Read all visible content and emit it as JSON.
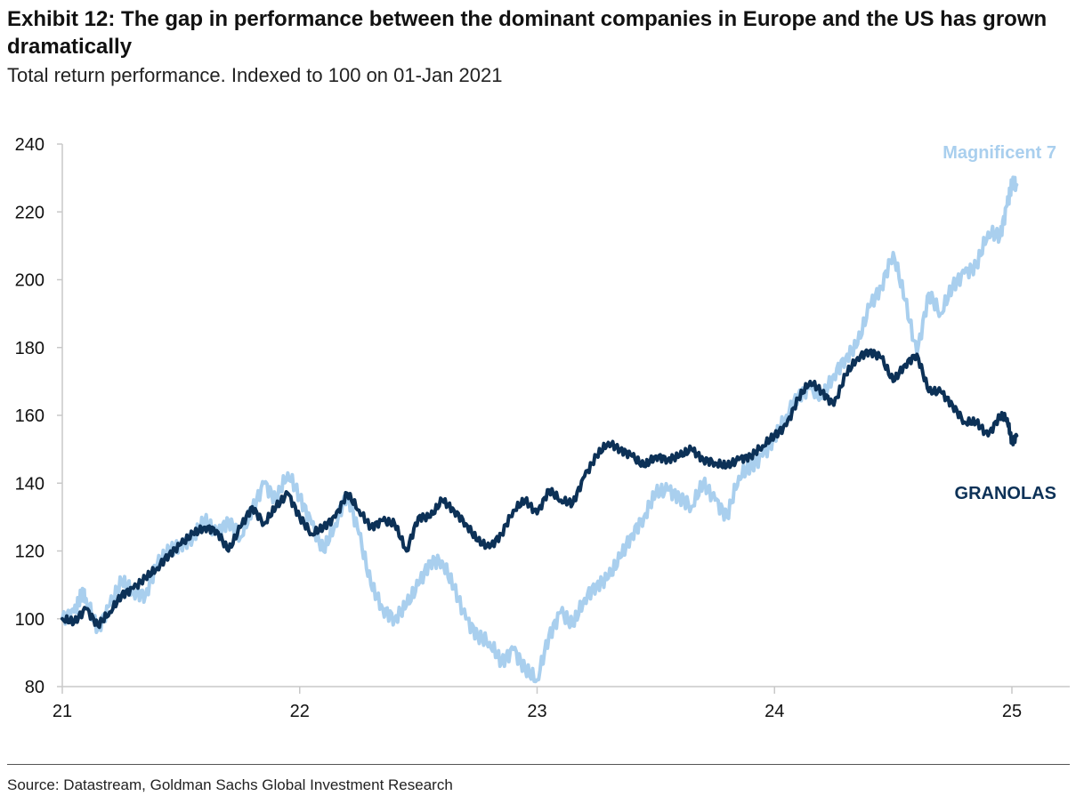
{
  "header": {
    "title": "Exhibit 12: The gap in performance between the dominant companies in Europe and the US has grown dramatically",
    "subtitle": "Total return performance. Indexed to 100 on 01-Jan 2021"
  },
  "footer": {
    "source": "Source: Datastream, Goldman Sachs Global Investment Research"
  },
  "colors": {
    "magnificent7": "#a9cfee",
    "granolas": "#0c3157",
    "axis": "#c8c8c8"
  },
  "chart_data": {
    "type": "line",
    "title": "Total return performance. Indexed to 100 on 01-Jan 2021",
    "xlabel": "",
    "ylabel": "",
    "xlim": [
      21.0,
      25.25
    ],
    "ylim": [
      80,
      240
    ],
    "x_ticks": [
      21,
      22,
      23,
      24,
      25
    ],
    "x_tick_labels": [
      "21",
      "22",
      "23",
      "24",
      "25"
    ],
    "y_ticks": [
      80,
      100,
      120,
      140,
      160,
      180,
      200,
      220,
      240
    ],
    "y_tick_labels": [
      "80",
      "100",
      "120",
      "140",
      "160",
      "180",
      "200",
      "220",
      "240"
    ],
    "grid": false,
    "series": [
      {
        "name": "Magnificent 7",
        "label": "Magnificent 7",
        "x": [
          21.0,
          21.05,
          21.08,
          21.1,
          21.15,
          21.2,
          21.25,
          21.3,
          21.35,
          21.4,
          21.45,
          21.5,
          21.55,
          21.6,
          21.65,
          21.7,
          21.75,
          21.8,
          21.85,
          21.9,
          21.95,
          22.0,
          22.05,
          22.1,
          22.15,
          22.2,
          22.25,
          22.3,
          22.35,
          22.4,
          22.45,
          22.5,
          22.55,
          22.6,
          22.65,
          22.7,
          22.75,
          22.8,
          22.85,
          22.9,
          22.95,
          23.0,
          23.05,
          23.1,
          23.15,
          23.2,
          23.25,
          23.3,
          23.35,
          23.4,
          23.45,
          23.5,
          23.55,
          23.6,
          23.65,
          23.7,
          23.75,
          23.8,
          23.85,
          23.9,
          23.95,
          24.0,
          24.05,
          24.1,
          24.15,
          24.2,
          24.25,
          24.3,
          24.35,
          24.4,
          24.45,
          24.5,
          24.55,
          24.6,
          24.65,
          24.7,
          24.75,
          24.8,
          24.85,
          24.9,
          24.95,
          24.98,
          25.0,
          25.02
        ],
        "values": [
          100,
          102,
          107,
          106,
          97,
          104,
          111,
          108,
          107,
          116,
          120,
          122,
          124,
          129,
          125,
          129,
          124,
          132,
          140,
          135,
          143,
          136,
          128,
          120,
          128,
          137,
          125,
          110,
          103,
          100,
          104,
          110,
          117,
          117,
          109,
          100,
          95,
          93,
          87,
          91,
          85,
          82,
          95,
          102,
          98,
          106,
          110,
          112,
          118,
          125,
          130,
          137,
          138,
          136,
          133,
          140,
          135,
          130,
          142,
          145,
          148,
          153,
          160,
          166,
          168,
          165,
          172,
          177,
          181,
          192,
          198,
          208,
          194,
          178,
          196,
          190,
          198,
          202,
          204,
          214,
          213,
          222,
          228,
          228
        ]
      },
      {
        "name": "GRANOLAS",
        "label": "GRANOLAS",
        "x": [
          21.0,
          21.05,
          21.1,
          21.15,
          21.2,
          21.25,
          21.3,
          21.35,
          21.4,
          21.45,
          21.5,
          21.55,
          21.6,
          21.65,
          21.7,
          21.75,
          21.8,
          21.85,
          21.9,
          21.95,
          22.0,
          22.05,
          22.1,
          22.15,
          22.2,
          22.25,
          22.3,
          22.35,
          22.4,
          22.45,
          22.5,
          22.55,
          22.6,
          22.65,
          22.7,
          22.75,
          22.8,
          22.85,
          22.9,
          22.95,
          23.0,
          23.05,
          23.1,
          23.15,
          23.2,
          23.25,
          23.3,
          23.35,
          23.4,
          23.45,
          23.5,
          23.55,
          23.6,
          23.65,
          23.7,
          23.75,
          23.8,
          23.85,
          23.9,
          23.95,
          24.0,
          24.05,
          24.1,
          24.15,
          24.2,
          24.25,
          24.3,
          24.35,
          24.4,
          24.45,
          24.5,
          24.55,
          24.6,
          24.65,
          24.7,
          24.75,
          24.8,
          24.85,
          24.9,
          24.95,
          24.98,
          25.0,
          25.02
        ],
        "values": [
          100,
          99,
          103,
          98,
          102,
          107,
          109,
          112,
          115,
          119,
          122,
          125,
          127,
          126,
          120,
          127,
          133,
          128,
          133,
          137,
          130,
          125,
          127,
          130,
          137,
          132,
          127,
          129,
          128,
          120,
          130,
          130,
          135,
          132,
          128,
          123,
          121,
          125,
          132,
          135,
          131,
          138,
          135,
          134,
          142,
          148,
          152,
          150,
          148,
          145,
          148,
          147,
          148,
          150,
          147,
          146,
          145,
          147,
          148,
          151,
          154,
          157,
          165,
          170,
          167,
          163,
          172,
          177,
          179,
          177,
          170,
          175,
          178,
          167,
          167,
          163,
          158,
          158,
          154,
          160,
          159,
          152,
          154
        ]
      }
    ]
  }
}
